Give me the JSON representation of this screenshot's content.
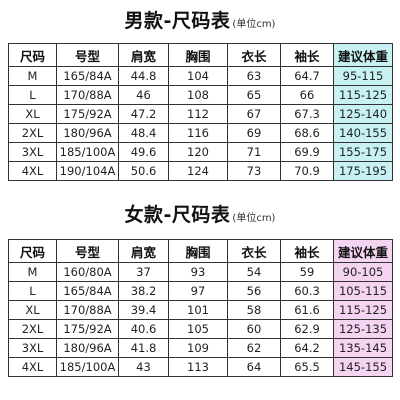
{
  "men": {
    "title": "男款-尺码表",
    "unit": "(单位cm)",
    "highlight_color": "#c8f1f3",
    "headers": [
      "尺码",
      "号型",
      "肩宽",
      "胸围",
      "衣长",
      "袖长",
      "建议体重"
    ],
    "rows": [
      [
        "M",
        "165/84A",
        "44.8",
        "104",
        "63",
        "64.7",
        "95-115"
      ],
      [
        "L",
        "170/88A",
        "46",
        "108",
        "65",
        "66",
        "115-125"
      ],
      [
        "XL",
        "175/92A",
        "47.2",
        "112",
        "67",
        "67.3",
        "125-140"
      ],
      [
        "2XL",
        "180/96A",
        "48.4",
        "116",
        "69",
        "68.6",
        "140-155"
      ],
      [
        "3XL",
        "185/100A",
        "49.6",
        "120",
        "71",
        "69.9",
        "155-175"
      ],
      [
        "4XL",
        "190/104A",
        "50.6",
        "124",
        "73",
        "70.9",
        "175-195"
      ]
    ]
  },
  "women": {
    "title": "女款-尺码表",
    "unit": "(单位cm)",
    "highlight_color": "#f4d4f1",
    "headers": [
      "尺码",
      "号型",
      "肩宽",
      "胸围",
      "衣长",
      "袖长",
      "建议体重"
    ],
    "rows": [
      [
        "M",
        "160/80A",
        "37",
        "93",
        "54",
        "59",
        "90-105"
      ],
      [
        "L",
        "165/84A",
        "38.2",
        "97",
        "56",
        "60.3",
        "105-115"
      ],
      [
        "XL",
        "170/88A",
        "39.4",
        "101",
        "58",
        "61.6",
        "115-125"
      ],
      [
        "2XL",
        "175/92A",
        "40.6",
        "105",
        "60",
        "62.9",
        "125-135"
      ],
      [
        "3XL",
        "180/96A",
        "41.8",
        "109",
        "62",
        "64.2",
        "135-145"
      ],
      [
        "4XL",
        "185/100A",
        "43",
        "113",
        "64",
        "65.5",
        "145-155"
      ]
    ]
  }
}
